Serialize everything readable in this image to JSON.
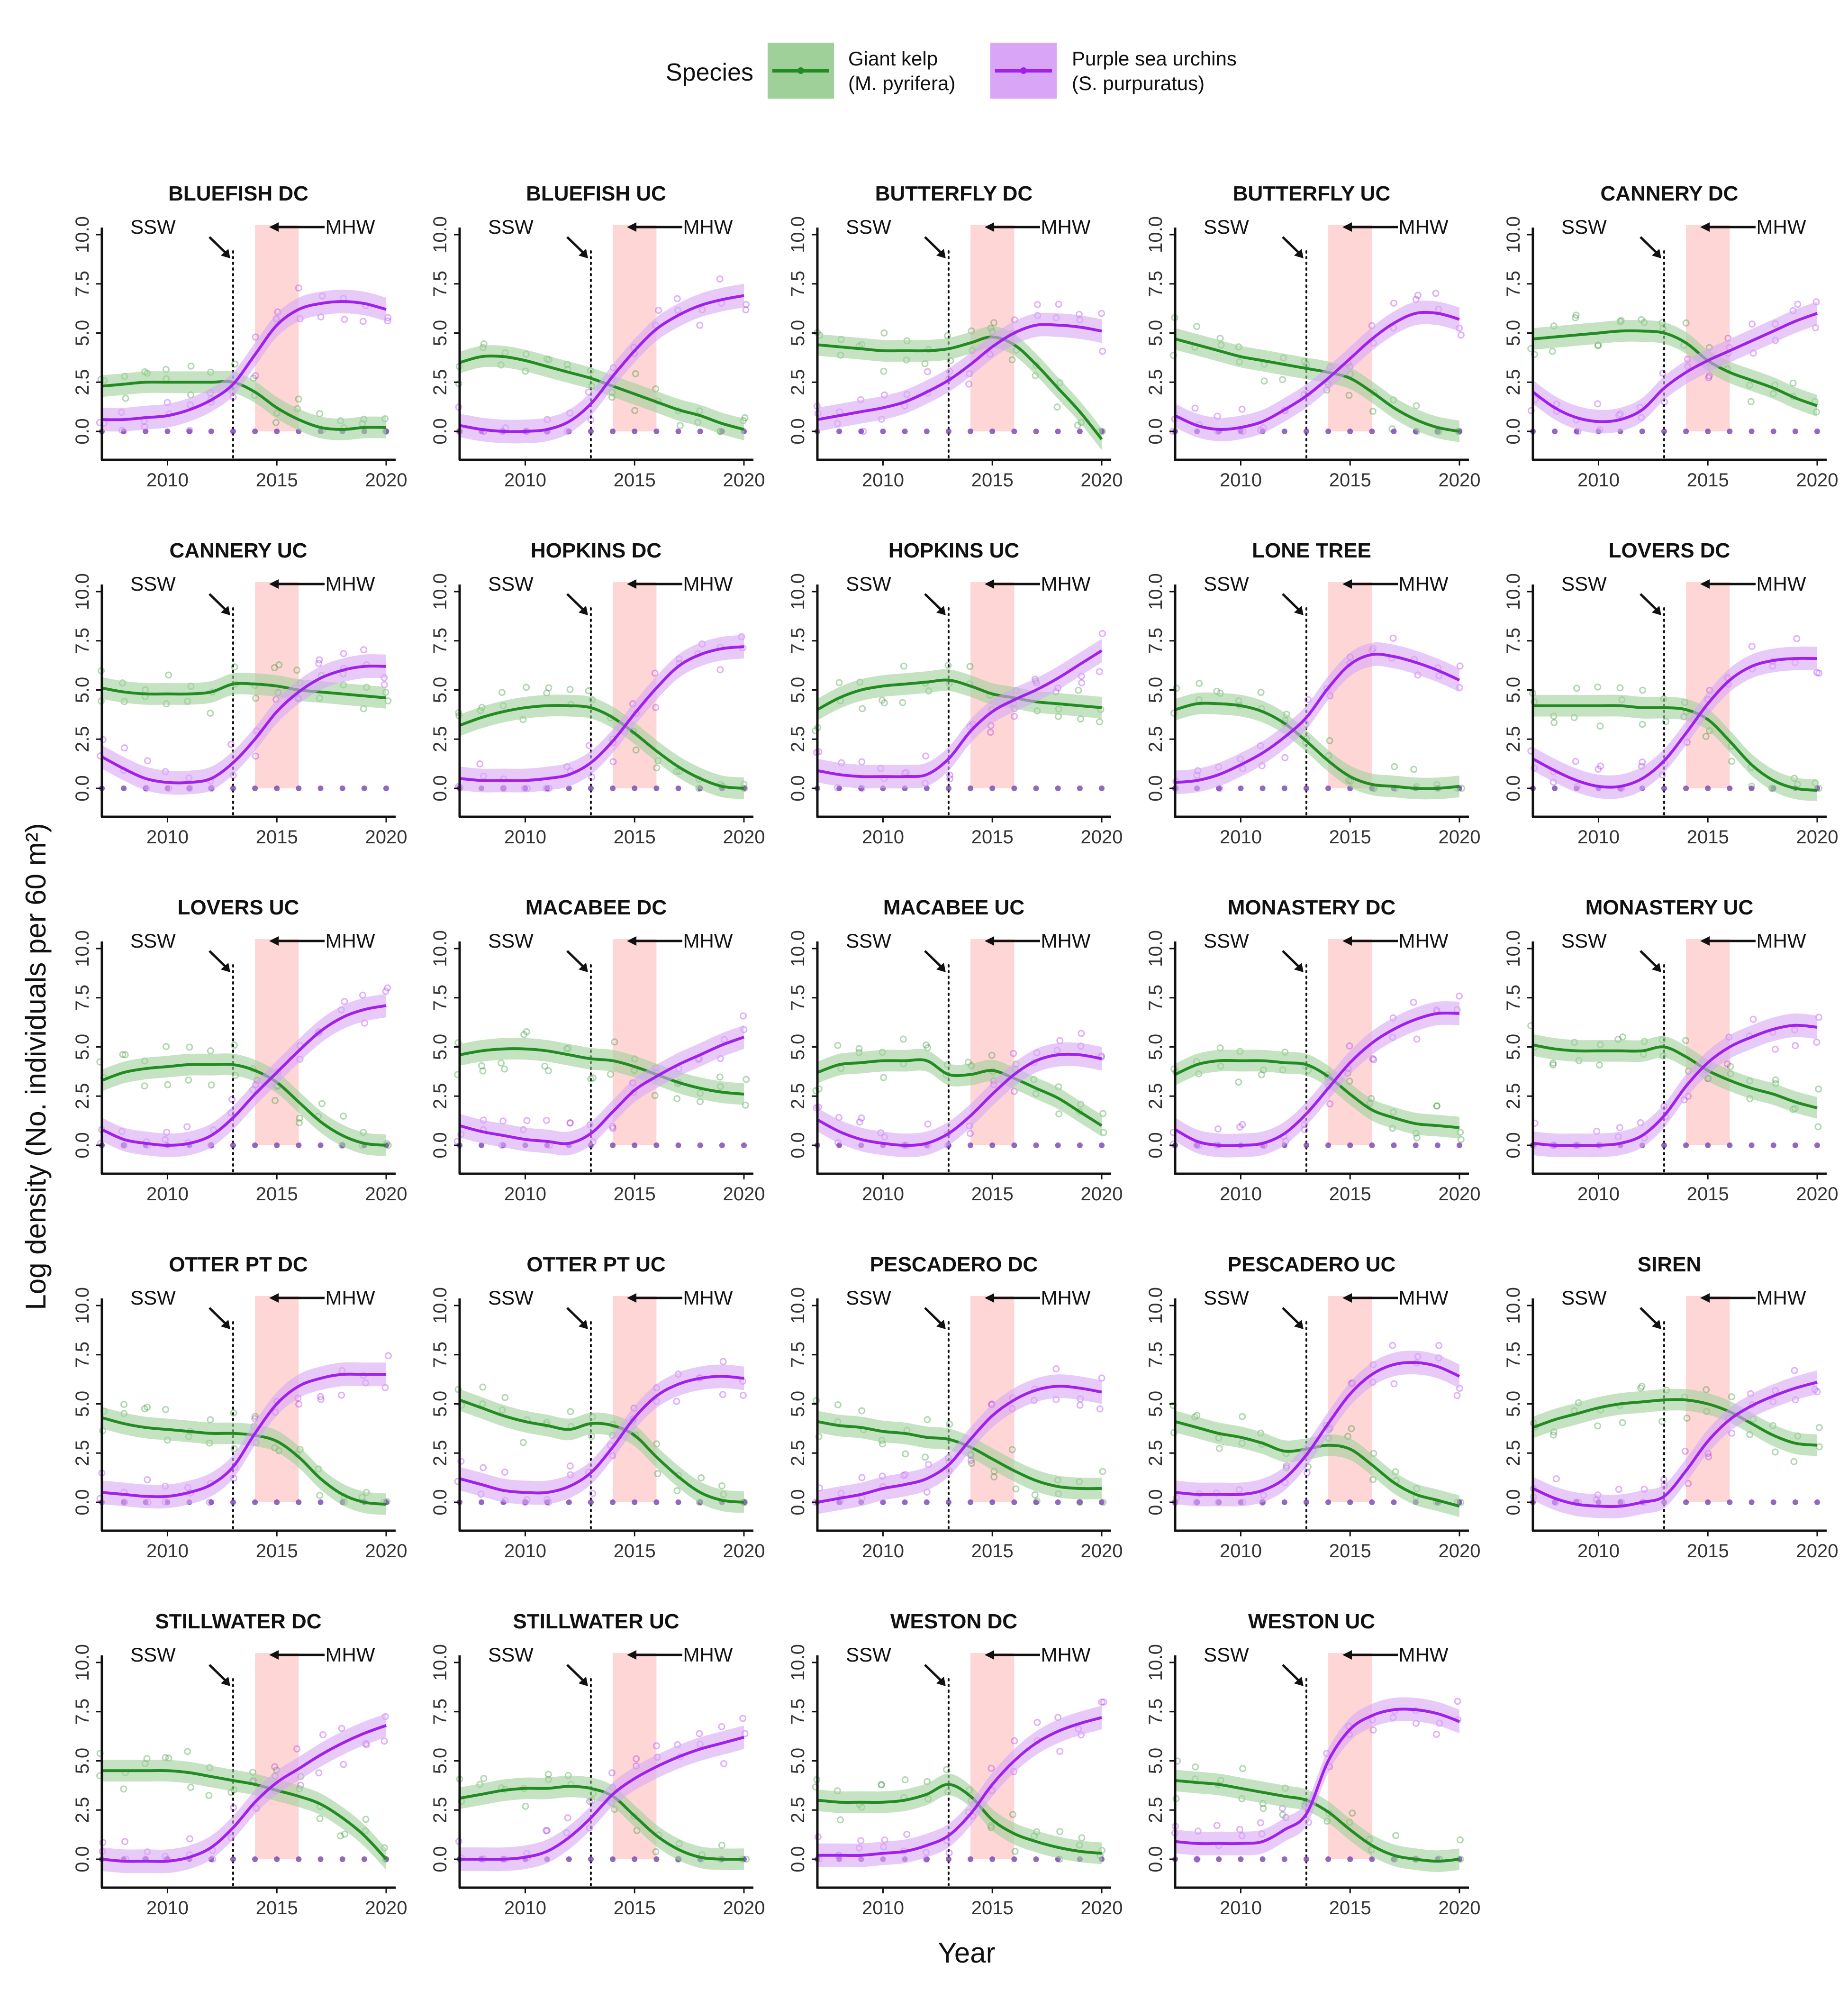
{
  "legend": {
    "title": "Species",
    "position": "top",
    "kelp_label_1": "Giant kelp",
    "kelp_label_2": "(M. pyrifera)",
    "urchin_label_1": "Purple sea urchins",
    "urchin_label_2": "(S. purpuratus)"
  },
  "colors": {
    "kelp": "#228b22",
    "kelp_band": "#9fd09a",
    "urchin": "#a020f0",
    "urchin_band": "#d9a6f5",
    "mhw": "#ffd6d6"
  },
  "chart_data": {
    "type": "line",
    "xlabel": "Year",
    "ylabel": "Log density (No. individuals per 60 m²)",
    "xlim": [
      2007,
      2020
    ],
    "ylim": [
      0,
      10
    ],
    "xticks": [
      "2010",
      "2015",
      "2020"
    ],
    "yticks": [
      "0.0",
      "2.5",
      "5.0",
      "7.5",
      "10.0"
    ],
    "grid": false,
    "events": {
      "ssw_label": "SSW",
      "ssw_year": 2013,
      "mhw_label": "MHW",
      "mhw_start": 2014,
      "mhw_end": 2016
    },
    "trend_years": [
      2007,
      2008,
      2009,
      2010,
      2011,
      2012,
      2013,
      2014,
      2015,
      2016,
      2017,
      2018,
      2019,
      2020
    ],
    "sites": [
      {
        "name": "BLUEFISH DC",
        "kelp": [
          2.3,
          2.4,
          2.5,
          2.5,
          2.5,
          2.5,
          2.5,
          2.0,
          1.2,
          0.6,
          0.2,
          0.1,
          0.2,
          0.2
        ],
        "urchin": [
          0.6,
          0.6,
          0.7,
          0.8,
          1.1,
          1.6,
          2.4,
          3.9,
          5.4,
          6.2,
          6.5,
          6.6,
          6.5,
          6.2
        ]
      },
      {
        "name": "BLUEFISH UC",
        "kelp": [
          3.5,
          3.8,
          3.8,
          3.6,
          3.3,
          3.0,
          2.7,
          2.3,
          1.9,
          1.5,
          1.1,
          0.8,
          0.4,
          0.1
        ],
        "urchin": [
          0.3,
          0.1,
          0.0,
          0.0,
          0.1,
          0.5,
          1.4,
          2.8,
          4.1,
          5.2,
          5.9,
          6.4,
          6.7,
          6.9
        ]
      },
      {
        "name": "BUTTERFLY DC",
        "kelp": [
          4.4,
          4.3,
          4.2,
          4.1,
          4.1,
          4.1,
          4.2,
          4.5,
          4.8,
          4.4,
          3.4,
          2.2,
          1.0,
          -0.4
        ],
        "urchin": [
          0.6,
          0.8,
          1.0,
          1.2,
          1.5,
          2.0,
          2.6,
          3.4,
          4.3,
          5.0,
          5.4,
          5.4,
          5.3,
          5.1
        ]
      },
      {
        "name": "BUTTERFLY UC",
        "kelp": [
          4.7,
          4.4,
          4.1,
          3.8,
          3.6,
          3.4,
          3.2,
          3.0,
          2.7,
          2.0,
          1.2,
          0.6,
          0.2,
          0.0
        ],
        "urchin": [
          0.8,
          0.3,
          0.1,
          0.2,
          0.5,
          1.1,
          1.8,
          2.7,
          3.7,
          4.7,
          5.5,
          6.0,
          6.0,
          5.7
        ]
      },
      {
        "name": "CANNERY DC",
        "kelp": [
          4.7,
          4.8,
          4.9,
          5.0,
          5.1,
          5.1,
          5.0,
          4.5,
          3.6,
          3.0,
          2.6,
          2.2,
          1.7,
          1.3
        ],
        "urchin": [
          2.0,
          1.2,
          0.7,
          0.5,
          0.6,
          1.1,
          2.2,
          3.0,
          3.6,
          4.1,
          4.6,
          5.1,
          5.6,
          6.0
        ]
      },
      {
        "name": "CANNERY UC",
        "kelp": [
          5.1,
          4.9,
          4.8,
          4.8,
          4.8,
          4.9,
          5.3,
          5.3,
          5.2,
          5.0,
          4.9,
          4.8,
          4.7,
          4.6
        ],
        "urchin": [
          1.6,
          1.0,
          0.5,
          0.3,
          0.3,
          0.5,
          1.3,
          2.5,
          3.9,
          4.9,
          5.6,
          6.0,
          6.2,
          6.2
        ]
      },
      {
        "name": "HOPKINS DC",
        "kelp": [
          3.2,
          3.6,
          3.9,
          4.1,
          4.2,
          4.2,
          4.1,
          3.6,
          2.8,
          1.9,
          1.1,
          0.5,
          0.1,
          0.0
        ],
        "urchin": [
          0.5,
          0.4,
          0.4,
          0.4,
          0.5,
          0.7,
          1.3,
          2.4,
          3.8,
          5.1,
          6.2,
          6.8,
          7.1,
          7.2
        ]
      },
      {
        "name": "HOPKINS UC",
        "kelp": [
          4.0,
          4.6,
          5.0,
          5.2,
          5.3,
          5.4,
          5.5,
          5.2,
          4.8,
          4.6,
          4.4,
          4.3,
          4.2,
          4.1
        ],
        "urchin": [
          0.9,
          0.7,
          0.6,
          0.6,
          0.6,
          0.7,
          1.5,
          2.9,
          3.9,
          4.5,
          5.0,
          5.6,
          6.3,
          7.0
        ]
      },
      {
        "name": "LONE TREE",
        "kelp": [
          4.0,
          4.3,
          4.3,
          4.2,
          3.9,
          3.3,
          2.4,
          1.4,
          0.6,
          0.2,
          0.1,
          0.0,
          0.0,
          0.1
        ],
        "urchin": [
          0.3,
          0.4,
          0.7,
          1.2,
          1.8,
          2.6,
          3.6,
          5.1,
          6.3,
          6.8,
          6.7,
          6.4,
          6.0,
          5.5
        ]
      },
      {
        "name": "LOVERS DC",
        "kelp": [
          4.2,
          4.2,
          4.2,
          4.2,
          4.2,
          4.1,
          4.1,
          4.0,
          3.5,
          2.4,
          1.2,
          0.4,
          0.0,
          -0.1
        ],
        "urchin": [
          1.5,
          0.9,
          0.4,
          0.1,
          0.1,
          0.5,
          1.4,
          2.8,
          4.3,
          5.5,
          6.2,
          6.5,
          6.6,
          6.6
        ]
      },
      {
        "name": "LOVERS UC",
        "kelp": [
          3.3,
          3.7,
          3.9,
          4.0,
          4.1,
          4.1,
          4.1,
          3.8,
          3.2,
          2.2,
          1.2,
          0.5,
          0.1,
          0.0
        ],
        "urchin": [
          0.8,
          0.3,
          0.1,
          0.0,
          0.1,
          0.5,
          1.4,
          2.6,
          3.7,
          4.8,
          5.8,
          6.5,
          6.9,
          7.1
        ]
      },
      {
        "name": "MACABEE DC",
        "kelp": [
          4.6,
          4.8,
          4.9,
          4.9,
          4.8,
          4.6,
          4.4,
          4.3,
          4.0,
          3.6,
          3.2,
          2.9,
          2.7,
          2.6
        ],
        "urchin": [
          1.0,
          0.7,
          0.5,
          0.3,
          0.2,
          0.1,
          0.6,
          1.7,
          2.8,
          3.5,
          4.1,
          4.6,
          5.1,
          5.5
        ]
      },
      {
        "name": "MACABEE UC",
        "kelp": [
          3.7,
          4.1,
          4.2,
          4.3,
          4.3,
          4.3,
          3.6,
          3.6,
          3.8,
          3.4,
          2.9,
          2.4,
          1.7,
          1.0
        ],
        "urchin": [
          1.3,
          0.7,
          0.3,
          0.1,
          0.0,
          0.1,
          0.6,
          1.5,
          2.6,
          3.6,
          4.3,
          4.6,
          4.6,
          4.4
        ]
      },
      {
        "name": "MONASTERY DC",
        "kelp": [
          3.6,
          4.1,
          4.3,
          4.3,
          4.3,
          4.2,
          4.1,
          3.5,
          2.6,
          1.8,
          1.4,
          1.1,
          1.0,
          0.9
        ],
        "urchin": [
          0.8,
          0.2,
          0.0,
          0.0,
          0.1,
          0.6,
          1.6,
          2.9,
          4.2,
          5.2,
          5.9,
          6.4,
          6.7,
          6.7
        ]
      },
      {
        "name": "MONASTERY UC",
        "kelp": [
          5.1,
          4.9,
          4.8,
          4.8,
          4.8,
          4.8,
          5.0,
          4.5,
          3.8,
          3.3,
          2.9,
          2.6,
          2.2,
          1.9
        ],
        "urchin": [
          0.1,
          0.0,
          0.0,
          0.0,
          0.1,
          0.5,
          1.5,
          3.0,
          4.2,
          5.0,
          5.5,
          5.9,
          6.1,
          6.0
        ]
      },
      {
        "name": "OTTER PT DC",
        "kelp": [
          4.3,
          4.0,
          3.8,
          3.7,
          3.6,
          3.5,
          3.5,
          3.4,
          3.1,
          2.3,
          1.2,
          0.4,
          0.0,
          -0.1
        ],
        "urchin": [
          0.5,
          0.4,
          0.3,
          0.3,
          0.5,
          0.9,
          1.8,
          3.5,
          5.0,
          5.9,
          6.3,
          6.5,
          6.5,
          6.5
        ]
      },
      {
        "name": "OTTER PT UC",
        "kelp": [
          5.2,
          4.8,
          4.4,
          4.1,
          3.9,
          3.7,
          4.0,
          3.9,
          3.4,
          2.3,
          1.3,
          0.5,
          0.1,
          0.0
        ],
        "urchin": [
          1.2,
          0.9,
          0.6,
          0.5,
          0.5,
          0.8,
          1.5,
          2.8,
          4.3,
          5.4,
          6.0,
          6.3,
          6.4,
          6.3
        ]
      },
      {
        "name": "PESCADERO DC",
        "kelp": [
          4.1,
          3.9,
          3.8,
          3.6,
          3.5,
          3.3,
          3.2,
          2.8,
          2.2,
          1.6,
          1.1,
          0.8,
          0.7,
          0.7
        ],
        "urchin": [
          0.0,
          0.2,
          0.4,
          0.7,
          0.9,
          1.2,
          1.9,
          3.2,
          4.4,
          5.2,
          5.7,
          5.9,
          5.8,
          5.6
        ]
      },
      {
        "name": "PESCADERO UC",
        "kelp": [
          4.1,
          3.8,
          3.5,
          3.3,
          3.0,
          2.6,
          2.7,
          2.9,
          2.7,
          1.9,
          1.0,
          0.4,
          0.1,
          -0.2
        ],
        "urchin": [
          0.5,
          0.4,
          0.4,
          0.4,
          0.6,
          1.2,
          2.4,
          4.0,
          5.5,
          6.5,
          7.0,
          7.1,
          6.9,
          6.4
        ]
      },
      {
        "name": "SIREN",
        "kelp": [
          3.8,
          4.2,
          4.5,
          4.8,
          5.0,
          5.1,
          5.2,
          5.2,
          5.0,
          4.6,
          4.0,
          3.4,
          3.0,
          2.9
        ],
        "urchin": [
          0.7,
          0.2,
          -0.1,
          -0.2,
          -0.2,
          0.0,
          0.3,
          1.6,
          3.1,
          4.2,
          4.9,
          5.4,
          5.8,
          6.1
        ]
      },
      {
        "name": "STILLWATER DC",
        "kelp": [
          4.5,
          4.5,
          4.5,
          4.5,
          4.4,
          4.2,
          4.0,
          3.8,
          3.5,
          3.2,
          2.8,
          2.1,
          1.2,
          0.0
        ],
        "urchin": [
          0.0,
          -0.1,
          -0.1,
          -0.1,
          0.1,
          0.6,
          1.6,
          2.9,
          3.9,
          4.6,
          5.3,
          5.9,
          6.4,
          6.8
        ]
      },
      {
        "name": "STILLWATER UC",
        "kelp": [
          3.1,
          3.3,
          3.5,
          3.6,
          3.6,
          3.7,
          3.6,
          3.2,
          2.2,
          1.2,
          0.5,
          0.1,
          0.0,
          0.0
        ],
        "urchin": [
          0.0,
          0.0,
          0.0,
          0.1,
          0.4,
          1.1,
          2.1,
          3.3,
          4.1,
          4.7,
          5.2,
          5.6,
          5.9,
          6.2
        ]
      },
      {
        "name": "WESTON DC",
        "kelp": [
          3.0,
          2.9,
          2.9,
          2.9,
          3.0,
          3.3,
          3.8,
          3.2,
          2.0,
          1.3,
          0.9,
          0.6,
          0.4,
          0.3
        ],
        "urchin": [
          0.2,
          0.2,
          0.2,
          0.3,
          0.4,
          0.7,
          1.2,
          2.3,
          3.8,
          5.0,
          5.9,
          6.5,
          6.9,
          7.2
        ]
      },
      {
        "name": "WESTON UC",
        "kelp": [
          4.0,
          3.9,
          3.8,
          3.6,
          3.4,
          3.2,
          3.0,
          2.4,
          1.5,
          0.7,
          0.2,
          0.0,
          -0.1,
          0.0
        ],
        "urchin": [
          0.9,
          0.8,
          0.8,
          0.8,
          0.9,
          1.5,
          2.3,
          5.0,
          6.6,
          7.3,
          7.6,
          7.6,
          7.4,
          7.0
        ]
      }
    ]
  }
}
